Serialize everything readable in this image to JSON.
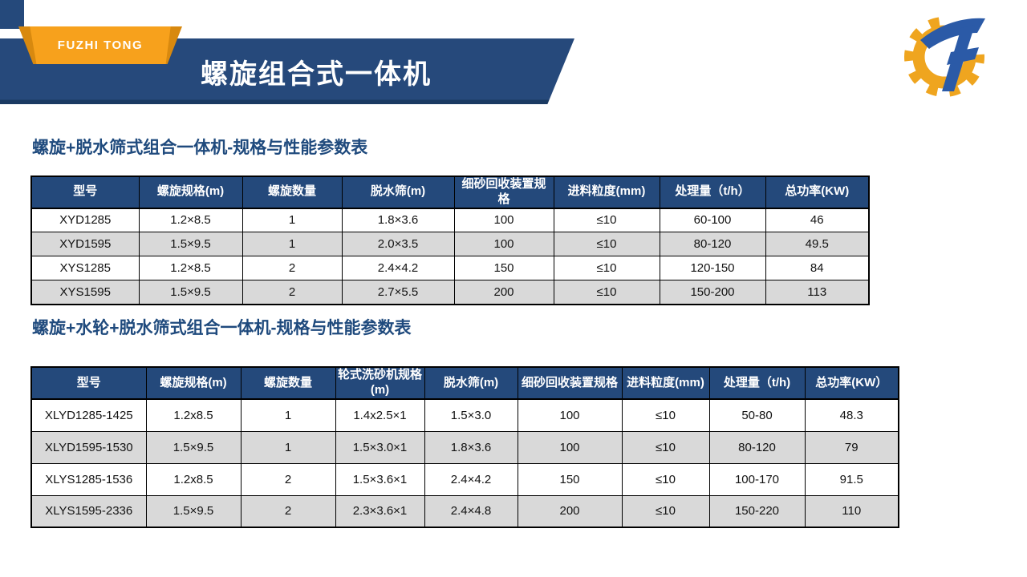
{
  "slide": {
    "brand": "FUZHI TONG",
    "title": "螺旋组合式一体机"
  },
  "logo": {
    "icon": "gear-with-F-monogram",
    "gear_color": "#EFA51F",
    "monogram_color": "#2B5AA7"
  },
  "colors": {
    "banner_navy": "#26497B",
    "banner_underline": "#1B3A62",
    "table_header_navy": "#24497B",
    "ribbon_orange": "#F7A11C",
    "ribbon_orange_dark": "#D8890F",
    "alt_row_gray": "#D9D9D9",
    "heading_text": "#1F4A7D"
  },
  "sections": [
    {
      "heading": "螺旋+脱水筛式组合一体机-规格与性能参数表",
      "table": {
        "headers": [
          "型号",
          "螺旋规格(m)",
          "螺旋数量",
          "脱水筛(m)",
          "细砂回收装置规格",
          "进料粒度(mm)",
          "处理量（t/h）",
          "总功率(KW)"
        ],
        "rows": [
          [
            "XYD1285",
            "1.2×8.5",
            "1",
            "1.8×3.6",
            "100",
            "≤10",
            "60-100",
            "46"
          ],
          [
            "XYD1595",
            "1.5×9.5",
            "1",
            "2.0×3.5",
            "100",
            "≤10",
            "80-120",
            "49.5"
          ],
          [
            "XYS1285",
            "1.2×8.5",
            "2",
            "2.4×4.2",
            "150",
            "≤10",
            "120-150",
            "84"
          ],
          [
            "XYS1595",
            "1.5×9.5",
            "2",
            "2.7×5.5",
            "200",
            "≤10",
            "150-200",
            "113"
          ]
        ]
      }
    },
    {
      "heading": "螺旋+水轮+脱水筛式组合一体机-规格与性能参数表",
      "table": {
        "headers": [
          "型号",
          "螺旋规格(m)",
          "螺旋数量",
          "轮式洗砂机规格(m)",
          "脱水筛(m)",
          "细砂回收装置规格",
          "进料粒度(mm)",
          "处理量（t/h)",
          "总功率(KW）"
        ],
        "rows": [
          [
            "XLYD1285-1425",
            "1.2x8.5",
            "1",
            "1.4x2.5×1",
            "1.5×3.0",
            "100",
            "≤10",
            "50-80",
            "48.3"
          ],
          [
            "XLYD1595-1530",
            "1.5×9.5",
            "1",
            "1.5×3.0×1",
            "1.8×3.6",
            "100",
            "≤10",
            "80-120",
            "79"
          ],
          [
            "XLYS1285-1536",
            "1.2x8.5",
            "2",
            "1.5×3.6×1",
            "2.4×4.2",
            "150",
            "≤10",
            "100-170",
            "91.5"
          ],
          [
            "XLYS1595-2336",
            "1.5×9.5",
            "2",
            "2.3×3.6×1",
            "2.4×4.8",
            "200",
            "≤10",
            "150-220",
            "110"
          ]
        ]
      }
    }
  ]
}
